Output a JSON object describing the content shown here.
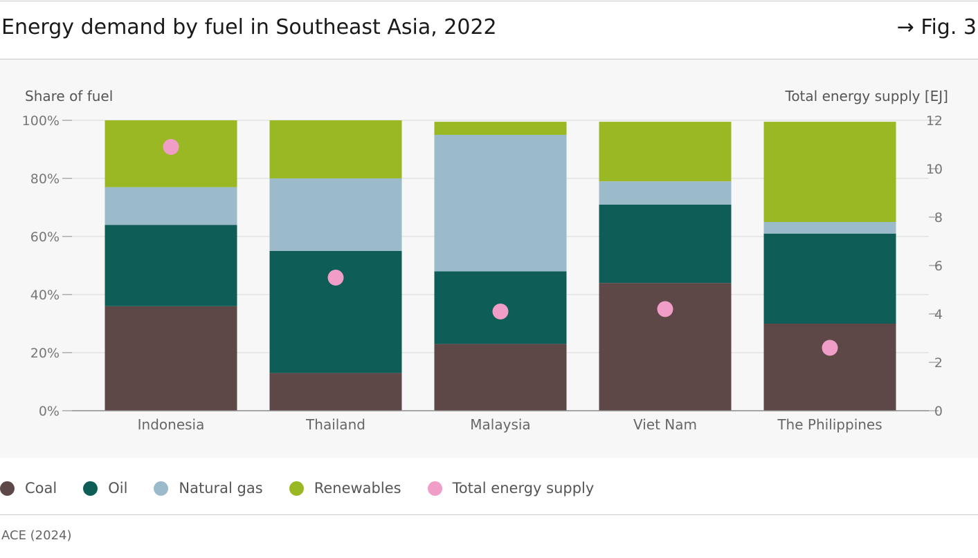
{
  "header": {
    "title": "Energy demand by fuel in Southeast Asia, 2022",
    "figure_ref": "→ Fig. 3"
  },
  "footer": {
    "source": "ACE (2024)"
  },
  "chart_data": {
    "type": "bar",
    "stacked": true,
    "categories": [
      "Indonesia",
      "Thailand",
      "Malaysia",
      "Viet Nam",
      "The Philippines"
    ],
    "ylabel": "Share of fuel",
    "y2label": "Total energy supply [EJ]",
    "ylim": [
      0,
      100
    ],
    "y2lim": [
      0,
      12
    ],
    "yticks": [
      "0%",
      "20%",
      "40%",
      "60%",
      "80%",
      "100%"
    ],
    "y2ticks": [
      "0",
      "2",
      "4",
      "6",
      "8",
      "10",
      "12"
    ],
    "grid": true,
    "legend_position": "bottom",
    "series": [
      {
        "name": "Coal",
        "color": "#5e4747",
        "values": [
          36,
          13,
          23,
          44,
          30
        ]
      },
      {
        "name": "Oil",
        "color": "#0e5e57",
        "values": [
          28,
          42,
          25,
          27,
          31
        ]
      },
      {
        "name": "Natural gas",
        "color": "#9bbbcb",
        "values": [
          13,
          25,
          47,
          8,
          4
        ]
      },
      {
        "name": "Renewables",
        "color": "#9ab823",
        "values": [
          23,
          20,
          4.5,
          20.5,
          34.5
        ]
      }
    ],
    "overlay": {
      "name": "Total energy supply",
      "type": "scatter",
      "axis": "right",
      "color": "#f09ec8",
      "values": [
        10.9,
        5.5,
        4.1,
        4.2,
        2.6
      ]
    }
  }
}
